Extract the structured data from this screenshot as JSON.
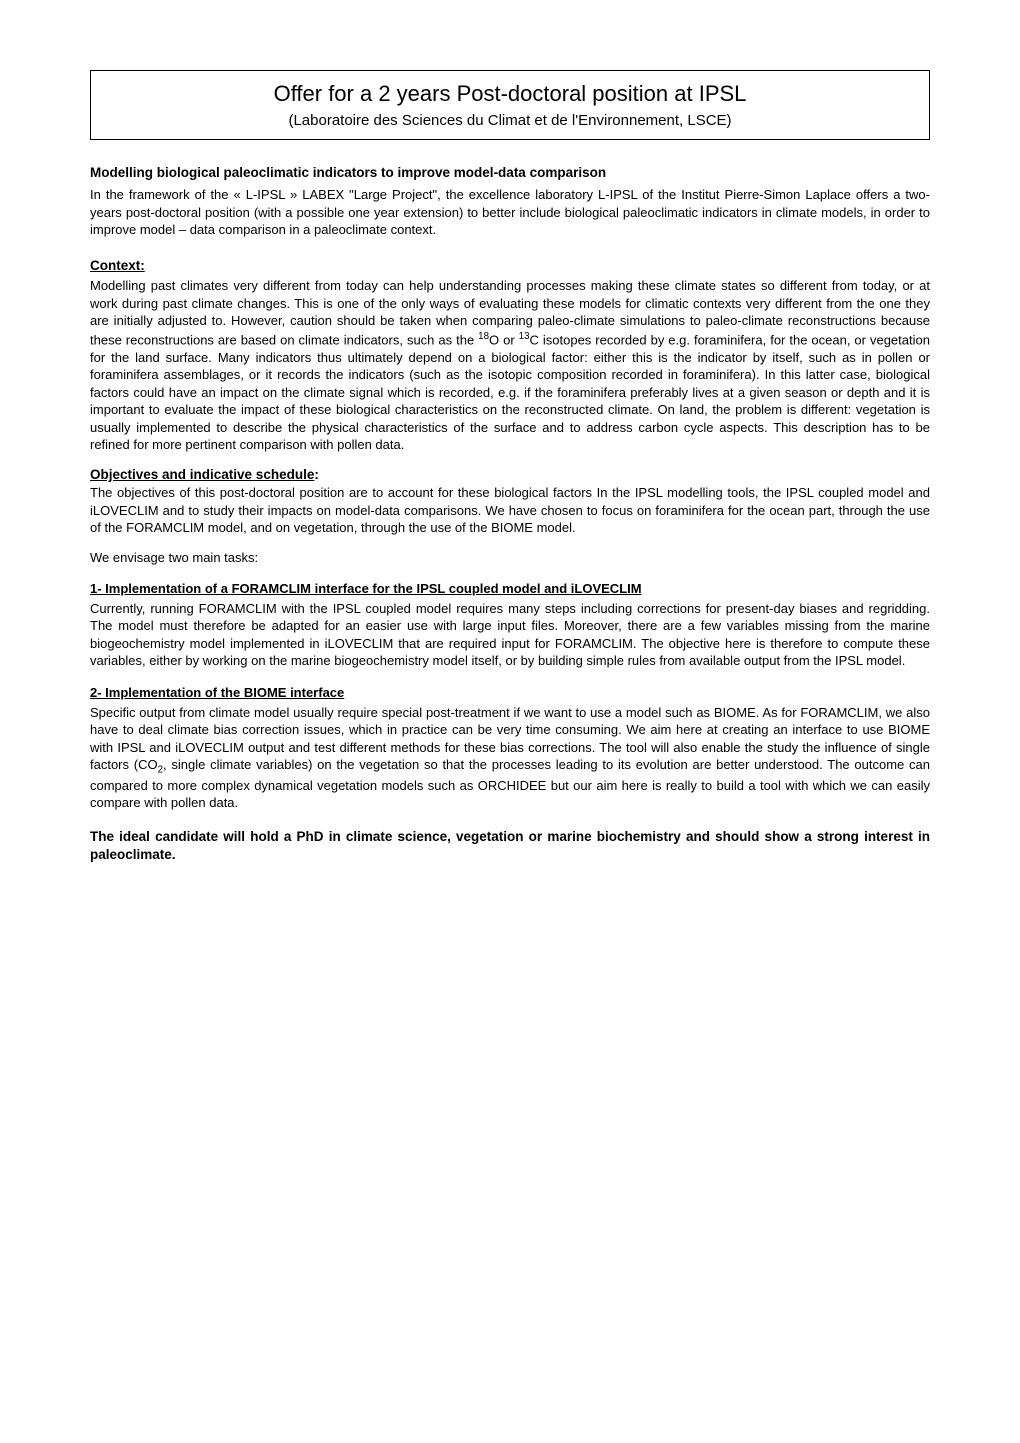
{
  "titleBox": {
    "main": "Offer for a 2 years Post-doctoral position at IPSL",
    "sub": "(Laboratoire des Sciences du Climat et de l'Environnement, LSCE)"
  },
  "subtitle": "Modelling biological paleoclimatic indicators to improve model-data comparison",
  "intro": "In the framework of the « L-IPSL » LABEX \"Large Project\", the excellence laboratory L-IPSL of the Institut Pierre-Simon Laplace offers a two-years post-doctoral position (with a possible one year extension) to better include biological paleoclimatic indicators in climate models, in order to improve model – data comparison in a paleoclimate context.",
  "context": {
    "heading": "Context:",
    "body_pre": "Modelling past climates very different from today can help understanding processes making these climate states so different from today, or at work during past climate changes. This is one of the only ways of evaluating these models for climatic contexts very different from the one they are initially adjusted to. However, caution should be taken when comparing paleo-climate simulations to paleo-climate reconstructions because these reconstructions are based on climate indicators, such as the ",
    "iso1_sup": "18",
    "iso1_base": "O or ",
    "iso2_sup": "13",
    "iso2_base": "C isotopes recorded by e.g. foraminifera, for the ocean, or vegetation for the land surface. Many indicators thus ultimately depend on a biological factor: either this is the indicator by itself, such as in pollen or foraminifera assemblages, or it records the indicators (such as the isotopic composition recorded in foraminifera). In this latter case, biological factors could have an impact on the climate signal which is recorded, e.g. if the foraminifera preferably lives at a given season or depth and it is important to evaluate the impact of these biological characteristics on the reconstructed climate. On land, the problem is different: vegetation is usually implemented to describe the physical characteristics of the surface and to address carbon cycle aspects. This description has to be refined for more pertinent comparison with pollen data."
  },
  "objectives": {
    "heading": "Objectives and indicative schedule",
    "colon": ":",
    "body": "The objectives of this post-doctoral position are to account for these biological factors In the IPSL modelling tools, the IPSL coupled model and iLOVECLIM and to study their impacts on model-data comparisons. We have chosen to focus on foraminifera for the ocean part, through the use of the FORAMCLIM model, and on vegetation, through the use of the BIOME model.",
    "envisage": "We envisage two main tasks:"
  },
  "task1": {
    "heading": "1- Implementation of a FORAMCLIM interface for the IPSL coupled model and iLOVECLIM ",
    "body": "Currently, running FORAMCLIM with the IPSL coupled model requires many steps including corrections for present-day biases and regridding. The model must therefore be adapted for an easier use with large input files. Moreover, there are a few variables missing from the marine biogeochemistry model implemented in iLOVECLIM that are required input for FORAMCLIM. The objective here is therefore to compute these variables, either by working on the marine biogeochemistry model itself, or by building simple rules from available output from the IPSL model."
  },
  "task2": {
    "heading": "2- Implementation of the BIOME interface",
    "body_pre": "Specific output from climate model usually require special post-treatment if we want to use a model such as BIOME. As for FORAMCLIM, we also have to deal climate bias correction issues, which in practice can be very time consuming. We aim here at creating an interface to use BIOME with IPSL and iLOVECLIM output and test different methods for these bias corrections. The tool will also enable the study the influence of single factors (CO",
    "sub": "2",
    "body_post": ", single climate variables) on the vegetation so that the processes leading to its evolution are better understood. The outcome can compared to more complex dynamical vegetation models such as ORCHIDEE but our aim here is really to build a tool with which we can easily compare with pollen data."
  },
  "candidate": "The ideal candidate will hold a PhD in climate science, vegetation or marine biochemistry and should show a strong interest in paleoclimate."
}
